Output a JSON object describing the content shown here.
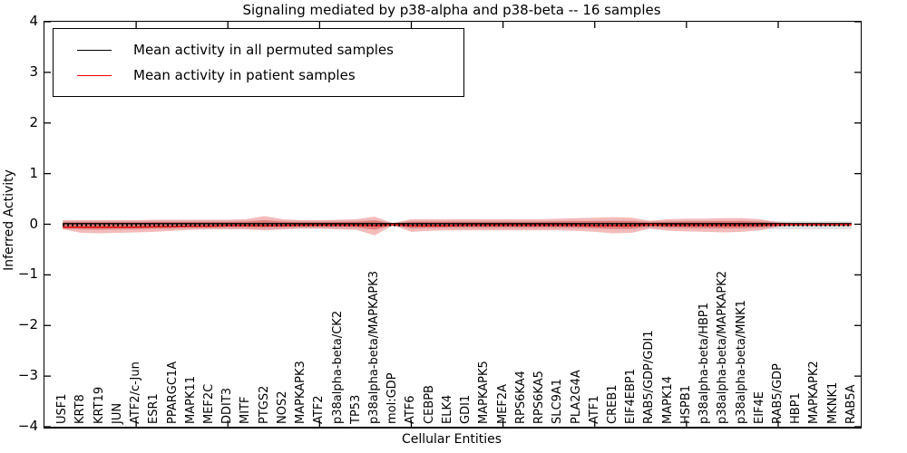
{
  "window": {
    "kind": "plot-figure"
  },
  "chart_data": {
    "type": "line",
    "title": "Signaling mediated by p38-alpha and p38-beta -- 16 samples",
    "xlabel": "Cellular Entities",
    "ylabel": "Inferred Activity",
    "ylim": [
      -4,
      4
    ],
    "xlim_units": 44.5,
    "grid": false,
    "legend_position": "upper-left",
    "yticks": [
      4,
      3,
      2,
      1,
      0,
      -1,
      -2,
      -3,
      -4
    ],
    "xticks_major_positions": [
      5,
      10,
      15,
      20,
      25,
      30,
      35,
      40
    ],
    "categories": [
      "USF1",
      "KRT8",
      "KRT19",
      "JUN",
      "ATF2/c-Jun",
      "ESR1",
      "PPARGC1A",
      "MAPK11",
      "MEF2C",
      "DDIT3",
      "MITF",
      "PTGS2",
      "NOS2",
      "MAPKAPK3",
      "ATF2",
      "p38alpha-beta/CK2",
      "TP53",
      "p38alpha-beta/MAPKAPK3",
      "mol:GDP",
      "ATF6",
      "CEBPB",
      "ELK4",
      "GDI1",
      "MAPKAPK5",
      "MEF2A",
      "RPS6KA4",
      "RPS6KA5",
      "SLC9A1",
      "PLA2G4A",
      "ATF1",
      "CREB1",
      "EIF4EBP1",
      "RAB5/GDP/GDI1",
      "MAPK14",
      "HSPB1",
      "p38alpha-beta/HBP1",
      "p38alpha-beta/MAPKAPK2",
      "p38alpha-beta/MNK1",
      "EIF4E",
      "RAB5/GDP",
      "HBP1",
      "MAPKAPK2",
      "MKNK1",
      "RAB5A"
    ],
    "series": [
      {
        "name": "Mean activity in all permuted samples",
        "color": "#000000",
        "values": [
          0,
          0,
          0,
          0,
          0,
          0,
          0,
          0,
          0,
          0,
          0,
          0,
          0,
          0,
          0,
          0,
          0,
          0,
          0,
          0,
          0,
          0,
          0,
          0,
          0,
          0,
          0,
          0,
          0,
          0,
          0,
          0,
          0,
          0,
          0,
          0,
          0,
          0,
          0,
          0,
          0,
          0,
          0,
          0
        ]
      },
      {
        "name": "Mean activity in patient samples",
        "color": "#e02020",
        "values": [
          -0.06,
          -0.06,
          -0.06,
          -0.06,
          -0.06,
          -0.05,
          -0.05,
          -0.04,
          -0.04,
          -0.03,
          -0.03,
          -0.03,
          -0.03,
          -0.02,
          -0.02,
          -0.02,
          -0.02,
          -0.03,
          -0.01,
          -0.03,
          -0.03,
          -0.03,
          -0.02,
          -0.02,
          -0.02,
          -0.02,
          -0.02,
          -0.02,
          -0.02,
          -0.03,
          -0.03,
          -0.03,
          -0.01,
          -0.02,
          -0.02,
          -0.02,
          -0.02,
          -0.02,
          -0.02,
          -0.01,
          -0.01,
          -0.01,
          -0.01,
          -0.01
        ]
      }
    ],
    "bands": {
      "permuted_upper": [
        0.06,
        0.07,
        0.07,
        0.07,
        0.07,
        0.07,
        0.07,
        0.07,
        0.07,
        0.07,
        0.07,
        0.08,
        0.07,
        0.07,
        0.07,
        0.07,
        0.07,
        0.08,
        0.03,
        0.07,
        0.07,
        0.07,
        0.07,
        0.07,
        0.07,
        0.07,
        0.07,
        0.07,
        0.07,
        0.07,
        0.07,
        0.07,
        0.06,
        0.07,
        0.07,
        0.07,
        0.07,
        0.07,
        0.07,
        0.06,
        0.06,
        0.06,
        0.06,
        0.06
      ],
      "permuted_lower": [
        -0.09,
        -0.11,
        -0.12,
        -0.11,
        -0.11,
        -0.1,
        -0.1,
        -0.09,
        -0.09,
        -0.09,
        -0.09,
        -0.1,
        -0.09,
        -0.08,
        -0.08,
        -0.09,
        -0.09,
        -0.1,
        -0.04,
        -0.09,
        -0.09,
        -0.09,
        -0.09,
        -0.09,
        -0.09,
        -0.09,
        -0.09,
        -0.09,
        -0.09,
        -0.09,
        -0.1,
        -0.1,
        -0.08,
        -0.09,
        -0.09,
        -0.09,
        -0.09,
        -0.09,
        -0.09,
        -0.1,
        -0.1,
        -0.1,
        -0.1,
        -0.1
      ],
      "patient_upper": [
        0.08,
        0.08,
        0.08,
        0.08,
        0.08,
        0.09,
        0.09,
        0.09,
        0.09,
        0.09,
        0.1,
        0.16,
        0.1,
        0.08,
        0.08,
        0.09,
        0.1,
        0.15,
        0.02,
        0.1,
        0.1,
        0.1,
        0.1,
        0.1,
        0.1,
        0.1,
        0.1,
        0.11,
        0.12,
        0.13,
        0.14,
        0.13,
        0.07,
        0.1,
        0.11,
        0.11,
        0.12,
        0.12,
        0.1,
        0.04,
        0.01,
        0,
        0,
        0
      ],
      "patient_lower": [
        -0.1,
        -0.17,
        -0.18,
        -0.17,
        -0.16,
        -0.15,
        -0.13,
        -0.11,
        -0.1,
        -0.1,
        -0.1,
        -0.12,
        -0.1,
        -0.09,
        -0.09,
        -0.1,
        -0.11,
        -0.22,
        -0.02,
        -0.15,
        -0.13,
        -0.12,
        -0.12,
        -0.12,
        -0.12,
        -0.12,
        -0.12,
        -0.12,
        -0.13,
        -0.15,
        -0.18,
        -0.17,
        -0.09,
        -0.13,
        -0.14,
        -0.15,
        -0.16,
        -0.15,
        -0.12,
        -0.05,
        -0.01,
        0,
        0,
        0
      ],
      "patient_last_index": 40,
      "inner_scale": 0.5
    },
    "colors": {
      "permuted_band": "rgba(160,160,160,0.30)",
      "patient_band": "rgba(225,45,45,0.32)",
      "zero_marker": "#000000"
    },
    "legend": [
      {
        "label": "Mean activity in all permuted samples",
        "color": "#000000"
      },
      {
        "label": "Mean activity in patient samples",
        "color": "#ff0000"
      }
    ]
  }
}
